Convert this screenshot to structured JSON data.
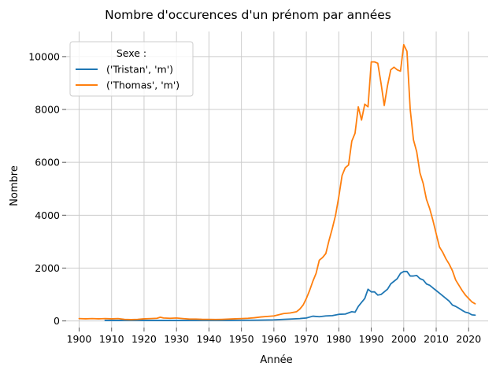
{
  "chart_data": {
    "type": "line",
    "title": "Nombre d'occurences d'un prénom par années",
    "xlabel": "Année",
    "ylabel": "Nombre",
    "xlim": [
      1896,
      2026
    ],
    "ylim": [
      -250,
      10950
    ],
    "x_ticks": [
      1900,
      1910,
      1920,
      1930,
      1940,
      1950,
      1960,
      1970,
      1980,
      1990,
      2000,
      2010,
      2020
    ],
    "y_ticks": [
      0,
      2000,
      4000,
      6000,
      8000,
      10000
    ],
    "grid": true,
    "legend": {
      "title": "Sexe :",
      "placement": "top-left"
    },
    "series": [
      {
        "name": "('Tristan', 'm')",
        "color": "#1f77b4",
        "points": [
          [
            1908,
            20
          ],
          [
            1912,
            20
          ],
          [
            1916,
            20
          ],
          [
            1920,
            20
          ],
          [
            1925,
            20
          ],
          [
            1930,
            20
          ],
          [
            1935,
            20
          ],
          [
            1940,
            20
          ],
          [
            1945,
            20
          ],
          [
            1950,
            25
          ],
          [
            1955,
            30
          ],
          [
            1960,
            40
          ],
          [
            1963,
            60
          ],
          [
            1965,
            70
          ],
          [
            1968,
            90
          ],
          [
            1970,
            110
          ],
          [
            1972,
            180
          ],
          [
            1974,
            160
          ],
          [
            1976,
            190
          ],
          [
            1978,
            200
          ],
          [
            1980,
            250
          ],
          [
            1982,
            260
          ],
          [
            1984,
            350
          ],
          [
            1985,
            330
          ],
          [
            1986,
            550
          ],
          [
            1987,
            700
          ],
          [
            1988,
            850
          ],
          [
            1989,
            1200
          ],
          [
            1990,
            1100
          ],
          [
            1991,
            1100
          ],
          [
            1992,
            980
          ],
          [
            1993,
            1000
          ],
          [
            1994,
            1100
          ],
          [
            1995,
            1200
          ],
          [
            1996,
            1400
          ],
          [
            1997,
            1500
          ],
          [
            1998,
            1600
          ],
          [
            1999,
            1800
          ],
          [
            2000,
            1870
          ],
          [
            2001,
            1870
          ],
          [
            2002,
            1700
          ],
          [
            2003,
            1700
          ],
          [
            2004,
            1720
          ],
          [
            2005,
            1600
          ],
          [
            2006,
            1550
          ],
          [
            2007,
            1400
          ],
          [
            2008,
            1350
          ],
          [
            2009,
            1250
          ],
          [
            2010,
            1150
          ],
          [
            2011,
            1050
          ],
          [
            2012,
            950
          ],
          [
            2013,
            850
          ],
          [
            2014,
            750
          ],
          [
            2015,
            600
          ],
          [
            2016,
            550
          ],
          [
            2017,
            480
          ],
          [
            2018,
            400
          ],
          [
            2019,
            330
          ],
          [
            2020,
            300
          ],
          [
            2021,
            230
          ],
          [
            2022,
            220
          ]
        ]
      },
      {
        "name": "('Thomas', 'm')",
        "color": "#ff7f0e",
        "points": [
          [
            1900,
            90
          ],
          [
            1902,
            80
          ],
          [
            1904,
            90
          ],
          [
            1906,
            80
          ],
          [
            1908,
            90
          ],
          [
            1910,
            80
          ],
          [
            1912,
            90
          ],
          [
            1914,
            60
          ],
          [
            1916,
            50
          ],
          [
            1918,
            60
          ],
          [
            1920,
            80
          ],
          [
            1922,
            90
          ],
          [
            1924,
            100
          ],
          [
            1925,
            140
          ],
          [
            1926,
            110
          ],
          [
            1928,
            100
          ],
          [
            1930,
            110
          ],
          [
            1932,
            90
          ],
          [
            1934,
            70
          ],
          [
            1936,
            70
          ],
          [
            1938,
            60
          ],
          [
            1940,
            60
          ],
          [
            1942,
            55
          ],
          [
            1944,
            60
          ],
          [
            1946,
            70
          ],
          [
            1948,
            80
          ],
          [
            1950,
            90
          ],
          [
            1952,
            100
          ],
          [
            1954,
            120
          ],
          [
            1956,
            150
          ],
          [
            1958,
            170
          ],
          [
            1960,
            190
          ],
          [
            1962,
            250
          ],
          [
            1963,
            280
          ],
          [
            1965,
            300
          ],
          [
            1967,
            350
          ],
          [
            1968,
            450
          ],
          [
            1969,
            600
          ],
          [
            1970,
            850
          ],
          [
            1971,
            1150
          ],
          [
            1972,
            1500
          ],
          [
            1973,
            1800
          ],
          [
            1974,
            2300
          ],
          [
            1975,
            2400
          ],
          [
            1976,
            2550
          ],
          [
            1977,
            3050
          ],
          [
            1978,
            3500
          ],
          [
            1979,
            4000
          ],
          [
            1980,
            4700
          ],
          [
            1981,
            5500
          ],
          [
            1982,
            5800
          ],
          [
            1983,
            5900
          ],
          [
            1984,
            6800
          ],
          [
            1985,
            7100
          ],
          [
            1986,
            8100
          ],
          [
            1987,
            7600
          ],
          [
            1988,
            8200
          ],
          [
            1989,
            8100
          ],
          [
            1990,
            9800
          ],
          [
            1991,
            9800
          ],
          [
            1992,
            9750
          ],
          [
            1993,
            9000
          ],
          [
            1994,
            8150
          ],
          [
            1995,
            8900
          ],
          [
            1996,
            9500
          ],
          [
            1997,
            9600
          ],
          [
            1998,
            9500
          ],
          [
            1999,
            9450
          ],
          [
            2000,
            10450
          ],
          [
            2001,
            10200
          ],
          [
            2002,
            8000
          ],
          [
            2003,
            6850
          ],
          [
            2004,
            6400
          ],
          [
            2005,
            5600
          ],
          [
            2006,
            5200
          ],
          [
            2007,
            4600
          ],
          [
            2008,
            4250
          ],
          [
            2009,
            3800
          ],
          [
            2010,
            3300
          ],
          [
            2011,
            2800
          ],
          [
            2012,
            2600
          ],
          [
            2013,
            2350
          ],
          [
            2014,
            2150
          ],
          [
            2015,
            1900
          ],
          [
            2016,
            1550
          ],
          [
            2017,
            1350
          ],
          [
            2018,
            1150
          ],
          [
            2019,
            980
          ],
          [
            2020,
            850
          ],
          [
            2021,
            720
          ],
          [
            2022,
            650
          ]
        ]
      }
    ]
  }
}
